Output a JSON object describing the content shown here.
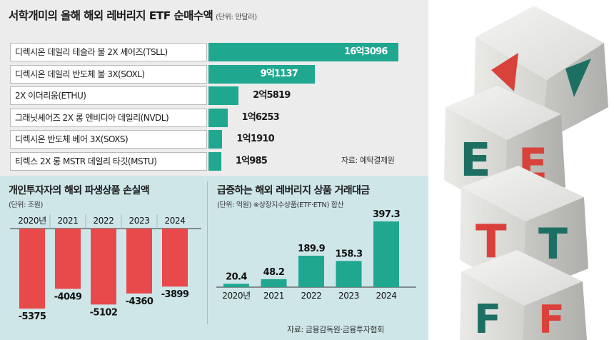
{
  "top": {
    "title": "서학개미의 올해 해외 레버리지 ETF 순매수액",
    "unit": "(단위: 만달러)",
    "source": "자료: 예탁결제원"
  },
  "left_chart": {
    "title": "개인투자자의 해외 파생상품 손실액",
    "unit": "(단위: 조원)"
  },
  "right_chart": {
    "title": "급증하는 해외 레버리지 상품 거래대금",
    "unit": "(단위: 억원) ※상장지수상품(ETF·ETN) 합산",
    "source": "자료: 금융감독원·금융투자협회"
  },
  "decoration": {
    "letters": [
      "E",
      "E",
      "T",
      "T",
      "F",
      "F"
    ],
    "colors": {
      "red": "#d9423a",
      "green": "#1d6f63",
      "teal": "#1fa78f",
      "loss_red": "#e8494a"
    }
  },
  "chart_data": [
    {
      "type": "bar",
      "orientation": "horizontal",
      "categories": [
        "디렉시온 데일리 테슬라 불 2X 셰어즈(TSLL)",
        "디렉시온 데일리 반도체 불 3X(SOXL)",
        "2X 이더리움(ETHU)",
        "그래닛셰어즈 2X 롱 엔비디아 데일리(NVDL)",
        "디렉시온 반도체 베어 3X(SOXS)",
        "티렉스 2X 롱 MSTR 데일리 타깃(MSTU)"
      ],
      "values": [
        163096,
        91137,
        25819,
        16253,
        11910,
        10985
      ],
      "labels": [
        "16억3096",
        "9억1137",
        "2억5819",
        "1억6253",
        "1억1910",
        "1억985"
      ]
    },
    {
      "type": "bar",
      "categories": [
        "2020년",
        "2021",
        "2022",
        "2023",
        "2024"
      ],
      "values": [
        -5375,
        -4049,
        -5102,
        -4360,
        -3899
      ],
      "labels": [
        "-5375",
        "-4049",
        "-5102",
        "-4360",
        "-3899"
      ]
    },
    {
      "type": "bar",
      "categories": [
        "2020년",
        "2021",
        "2022",
        "2023",
        "2024"
      ],
      "values": [
        20.4,
        48.2,
        189.9,
        158.3,
        397.3
      ],
      "labels": [
        "20.4",
        "48.2",
        "189.9",
        "158.3",
        "397.3"
      ]
    }
  ]
}
